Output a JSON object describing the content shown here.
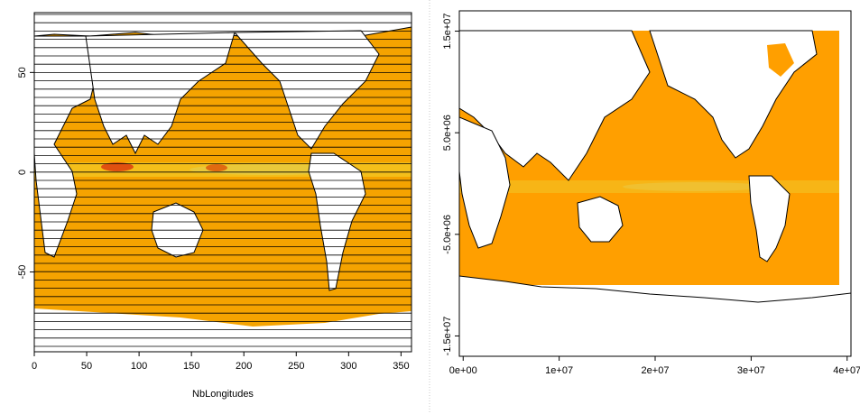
{
  "chart_data": [
    {
      "type": "heatmap",
      "title": "",
      "xlabel": "NbLongitudes",
      "ylabel": "",
      "xlim": [
        0,
        360
      ],
      "ylim": [
        -90,
        80
      ],
      "x_ticks": [
        0,
        50,
        100,
        150,
        200,
        250,
        300,
        350
      ],
      "y_ticks": [
        -50,
        0,
        50
      ],
      "x_tick_labels": [
        "0",
        "50",
        "100",
        "150",
        "200",
        "250",
        "300",
        "350"
      ],
      "y_tick_labels": [
        "-50",
        "0",
        "50"
      ],
      "grid": "horizontal latitude lines",
      "colors": {
        "ocean": "#f5a300",
        "hot": "#e8c020",
        "peak": "#e05010",
        "land": "#ffffff",
        "coast": "#000000"
      }
    },
    {
      "type": "heatmap",
      "title": "",
      "xlabel": "",
      "ylabel": "",
      "xlim": [
        -400000,
        40400000
      ],
      "ylim": [
        -17000000,
        17000000
      ],
      "x_ticks": [
        0,
        10000000,
        20000000,
        30000000,
        40000000
      ],
      "y_ticks": [
        -15000000,
        -5000000,
        5000000,
        15000000
      ],
      "x_tick_labels": [
        "0e+00",
        "1e+07",
        "2e+07",
        "3e+07",
        "4e+07"
      ],
      "y_tick_labels": [
        "-1.5e+07",
        "-5.0e+06",
        "5.0e+06",
        "1.5e+07"
      ],
      "grid": false,
      "colors": {
        "ocean": "#ff9f00",
        "hot": "#f0c030",
        "land": "#ffffff",
        "coast": "#000000"
      }
    }
  ]
}
